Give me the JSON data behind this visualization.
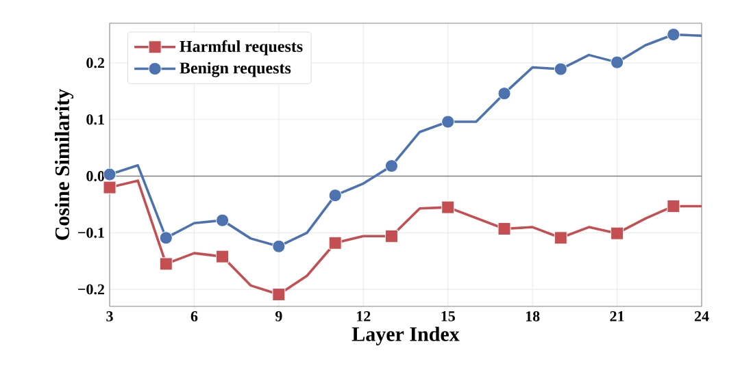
{
  "chart_data": {
    "type": "line",
    "xlabel": "Layer Index",
    "ylabel": "Cosine Similarity",
    "x": [
      3,
      4,
      5,
      6,
      7,
      8,
      9,
      10,
      11,
      12,
      13,
      14,
      15,
      16,
      17,
      18,
      19,
      20,
      21,
      22,
      23,
      24
    ],
    "series": [
      {
        "name": "Harmful requests",
        "color": "#c44e52",
        "marker": "square",
        "values": [
          -0.02,
          -0.008,
          -0.155,
          -0.136,
          -0.142,
          -0.193,
          -0.209,
          -0.176,
          -0.118,
          -0.106,
          -0.106,
          -0.057,
          -0.055,
          -0.074,
          -0.093,
          -0.09,
          -0.109,
          -0.09,
          -0.101,
          -0.075,
          -0.053,
          -0.053
        ]
      },
      {
        "name": "Benign requests",
        "color": "#4c72b0",
        "marker": "circle",
        "values": [
          0.003,
          0.019,
          -0.109,
          -0.083,
          -0.078,
          -0.11,
          -0.124,
          -0.1,
          -0.034,
          -0.013,
          0.018,
          0.078,
          0.096,
          0.096,
          0.146,
          0.192,
          0.189,
          0.214,
          0.201,
          0.231,
          0.25,
          0.248
        ]
      }
    ],
    "xlim": [
      3,
      24
    ],
    "ylim": [
      -0.23,
      0.27
    ],
    "xticks": [
      3,
      6,
      9,
      12,
      15,
      18,
      21,
      24
    ],
    "yticks": [
      {
        "value": -0.2,
        "label": "−0.2"
      },
      {
        "value": -0.1,
        "label": "−0.1"
      },
      {
        "value": 0,
        "label": "0.0"
      },
      {
        "value": 0.1,
        "label": "0.1"
      },
      {
        "value": 0.2,
        "label": "0.2"
      }
    ],
    "ref_lines": [
      {
        "axis": "y",
        "value": 0,
        "color": "#808080"
      }
    ],
    "grid": true,
    "legend": "top left",
    "line_style": "solid"
  }
}
